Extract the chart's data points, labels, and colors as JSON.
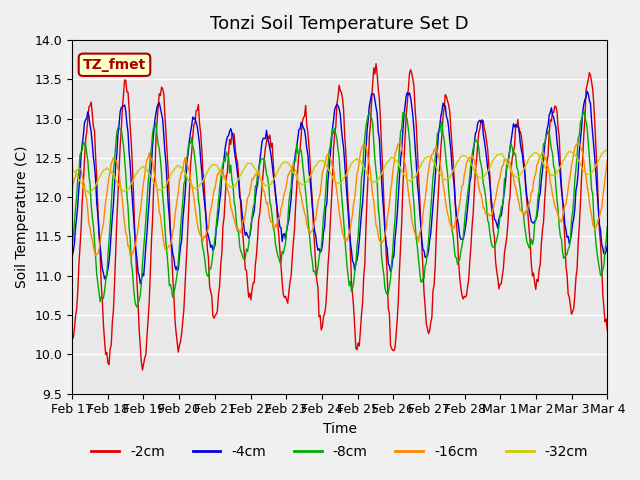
{
  "title": "Tonzi Soil Temperature Set D",
  "xlabel": "Time",
  "ylabel": "Soil Temperature (C)",
  "ylim": [
    9.5,
    14.0
  ],
  "yticks": [
    9.5,
    10.0,
    10.5,
    11.0,
    11.5,
    12.0,
    12.5,
    13.0,
    13.5,
    14.0
  ],
  "xtick_positions": [
    0,
    1,
    2,
    3,
    4,
    5,
    6,
    7,
    8,
    9,
    10,
    11,
    12,
    13,
    14,
    15
  ],
  "xtick_labels": [
    "Feb 17",
    "Feb 18",
    "Feb 19",
    "Feb 20",
    "Feb 21",
    "Feb 22",
    "Feb 23",
    "Feb 24",
    "Feb 25",
    "Feb 26",
    "Feb 27",
    "Feb 28",
    "Mar 1",
    "Mar 2",
    "Mar 3",
    "Mar 4"
  ],
  "legend_labels": [
    "-2cm",
    "-4cm",
    "-8cm",
    "-16cm",
    "-32cm"
  ],
  "line_colors": [
    "#dd0000",
    "#0000dd",
    "#00aa00",
    "#ff8800",
    "#cccc00"
  ],
  "label_box_color": "#ffffcc",
  "label_box_edge": "#aa0000",
  "label_text": "TZ_fmet",
  "label_text_color": "#aa0000",
  "plot_bg_color": "#e8e8e8",
  "grid_color": "#ffffff",
  "title_fontsize": 13,
  "axis_fontsize": 10,
  "tick_fontsize": 9,
  "legend_fontsize": 10,
  "n_points": 480,
  "days": 15
}
